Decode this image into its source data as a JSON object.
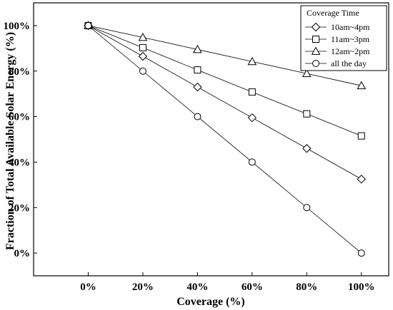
{
  "chart_data": {
    "type": "line",
    "title": "",
    "xlabel": "Coverage (%)",
    "ylabel": "Fraction of Total Available Solar Energy (%)",
    "x": [
      0,
      20,
      40,
      60,
      80,
      100
    ],
    "x_tick_labels": [
      "0%",
      "20%",
      "40%",
      "60%",
      "80%",
      "100%"
    ],
    "y_tick_labels": [
      "0%",
      "20%",
      "40%",
      "60%",
      "80%",
      "100%"
    ],
    "y_ticks": [
      0,
      20,
      40,
      60,
      80,
      100
    ],
    "xlim": [
      -20,
      110
    ],
    "ylim": [
      -10,
      110
    ],
    "grid": false,
    "legend": {
      "title": "Coverage Time",
      "placement": "top-right"
    },
    "series": [
      {
        "name": "10am~4pm",
        "marker": "diamond",
        "values": [
          100,
          86.5,
          73,
          59.5,
          46,
          32.5
        ]
      },
      {
        "name": "11am~3pm",
        "marker": "square",
        "values": [
          100,
          90.3,
          80.5,
          70.8,
          61.2,
          51.5
        ]
      },
      {
        "name": "12am~2pm",
        "marker": "triangle",
        "values": [
          100,
          94.8,
          89.5,
          84.2,
          78.9,
          73.6
        ]
      },
      {
        "name": "all the day",
        "marker": "circle",
        "values": [
          100,
          80,
          60,
          40,
          20,
          0
        ]
      }
    ]
  }
}
